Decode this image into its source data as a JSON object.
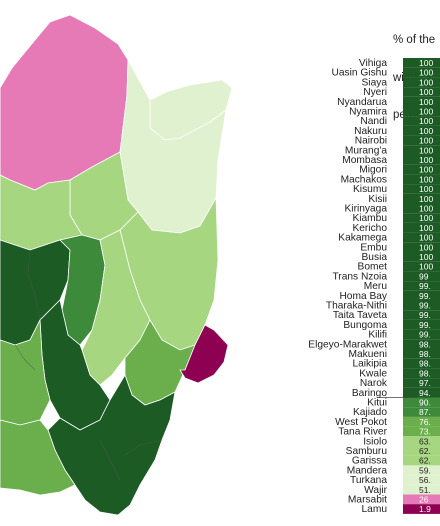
{
  "title_lines": [
    "% of the",
    "within 2",
    "permane"
  ],
  "colors": {
    "dark_green": "#1d5b25",
    "mid_green": "#3c8a3a",
    "green": "#6aaf4c",
    "light_green": "#a6d67f",
    "pale_green": "#e0f1cf",
    "pink": "#e57ab7",
    "magenta": "#8e0152"
  },
  "counties": [
    {
      "name": "Vihiga",
      "value": "100"
    },
    {
      "name": "Uasin Gishu",
      "value": "100"
    },
    {
      "name": "Siaya",
      "value": "100"
    },
    {
      "name": "Nyeri",
      "value": "100"
    },
    {
      "name": "Nyandarua",
      "value": "100"
    },
    {
      "name": "Nyamira",
      "value": "100"
    },
    {
      "name": "Nandi",
      "value": "100"
    },
    {
      "name": "Nakuru",
      "value": "100"
    },
    {
      "name": "Nairobi",
      "value": "100"
    },
    {
      "name": "Murang'a",
      "value": "100"
    },
    {
      "name": "Mombasa",
      "value": "100"
    },
    {
      "name": "Migori",
      "value": "100"
    },
    {
      "name": "Machakos",
      "value": "100"
    },
    {
      "name": "Kisumu",
      "value": "100"
    },
    {
      "name": "Kisii",
      "value": "100"
    },
    {
      "name": "Kirinyaga",
      "value": "100"
    },
    {
      "name": "Kiambu",
      "value": "100"
    },
    {
      "name": "Kericho",
      "value": "100"
    },
    {
      "name": "Kakamega",
      "value": "100"
    },
    {
      "name": "Embu",
      "value": "100"
    },
    {
      "name": "Busia",
      "value": "100"
    },
    {
      "name": "Bomet",
      "value": "100"
    },
    {
      "name": "Trans Nzoia",
      "value": "99"
    },
    {
      "name": "Meru",
      "value": "99."
    },
    {
      "name": "Homa Bay",
      "value": "99."
    },
    {
      "name": "Tharaka-Nithi",
      "value": "99."
    },
    {
      "name": "Taita Taveta",
      "value": "99."
    },
    {
      "name": "Bungoma",
      "value": "99."
    },
    {
      "name": "Kilifi",
      "value": "99."
    },
    {
      "name": "Elgeyo-Marakwet",
      "value": "98."
    },
    {
      "name": "Makueni",
      "value": "98."
    },
    {
      "name": "Laikipia",
      "value": "98."
    },
    {
      "name": "Kwale",
      "value": "98."
    },
    {
      "name": "Narok",
      "value": "97."
    },
    {
      "name": "Baringo",
      "value": "94."
    },
    {
      "name": "Kitui",
      "value": "90."
    },
    {
      "name": "Kajiado",
      "value": "87."
    },
    {
      "name": "West Pokot",
      "value": "76."
    },
    {
      "name": "Tana River",
      "value": "73."
    },
    {
      "name": "Isiolo",
      "value": "63."
    },
    {
      "name": "Samburu",
      "value": "62."
    },
    {
      "name": "Garissa",
      "value": "62."
    },
    {
      "name": "Mandera",
      "value": "59."
    },
    {
      "name": "Turkana",
      "value": "56."
    },
    {
      "name": "Wajir",
      "value": "51."
    },
    {
      "name": "Marsabit",
      "value": "26"
    },
    {
      "name": "Lamu",
      "value": "1.9"
    }
  ]
}
